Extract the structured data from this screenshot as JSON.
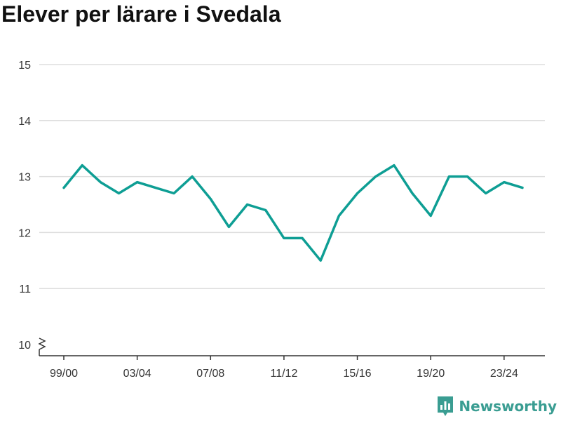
{
  "title": "Elever per lärare i Svedala",
  "brand": {
    "name": "Newsworthy",
    "icon": "newsworthy-logo-icon"
  },
  "colors": {
    "line": "#0e9e94",
    "grid": "#dddddd",
    "axis": "#333333",
    "brand": "#3a9d92"
  },
  "chart_data": {
    "type": "line",
    "title": "Elever per lärare i Svedala",
    "xlabel": "",
    "ylabel": "",
    "ylim": [
      10,
      15
    ],
    "y_axis_break": true,
    "grid": "horizontal",
    "yticks": [
      10,
      11,
      12,
      13,
      14,
      15
    ],
    "categories": [
      "99/00",
      "00/01",
      "01/02",
      "02/03",
      "03/04",
      "04/05",
      "05/06",
      "06/07",
      "07/08",
      "08/09",
      "09/10",
      "10/11",
      "11/12",
      "12/13",
      "13/14",
      "14/15",
      "15/16",
      "16/17",
      "17/18",
      "18/19",
      "19/20",
      "20/21",
      "21/22",
      "22/23",
      "23/24",
      "24/25"
    ],
    "xtick_labels": [
      "99/00",
      "03/04",
      "07/08",
      "11/12",
      "15/16",
      "19/20",
      "23/24"
    ],
    "series": [
      {
        "values": [
          12.8,
          13.2,
          12.9,
          12.7,
          12.9,
          12.8,
          12.7,
          13.0,
          12.6,
          12.1,
          12.5,
          12.4,
          11.9,
          11.9,
          11.5,
          12.3,
          12.7,
          13.0,
          13.2,
          12.7,
          12.3,
          13.0,
          13.0,
          12.7,
          12.9,
          12.8
        ]
      }
    ]
  }
}
